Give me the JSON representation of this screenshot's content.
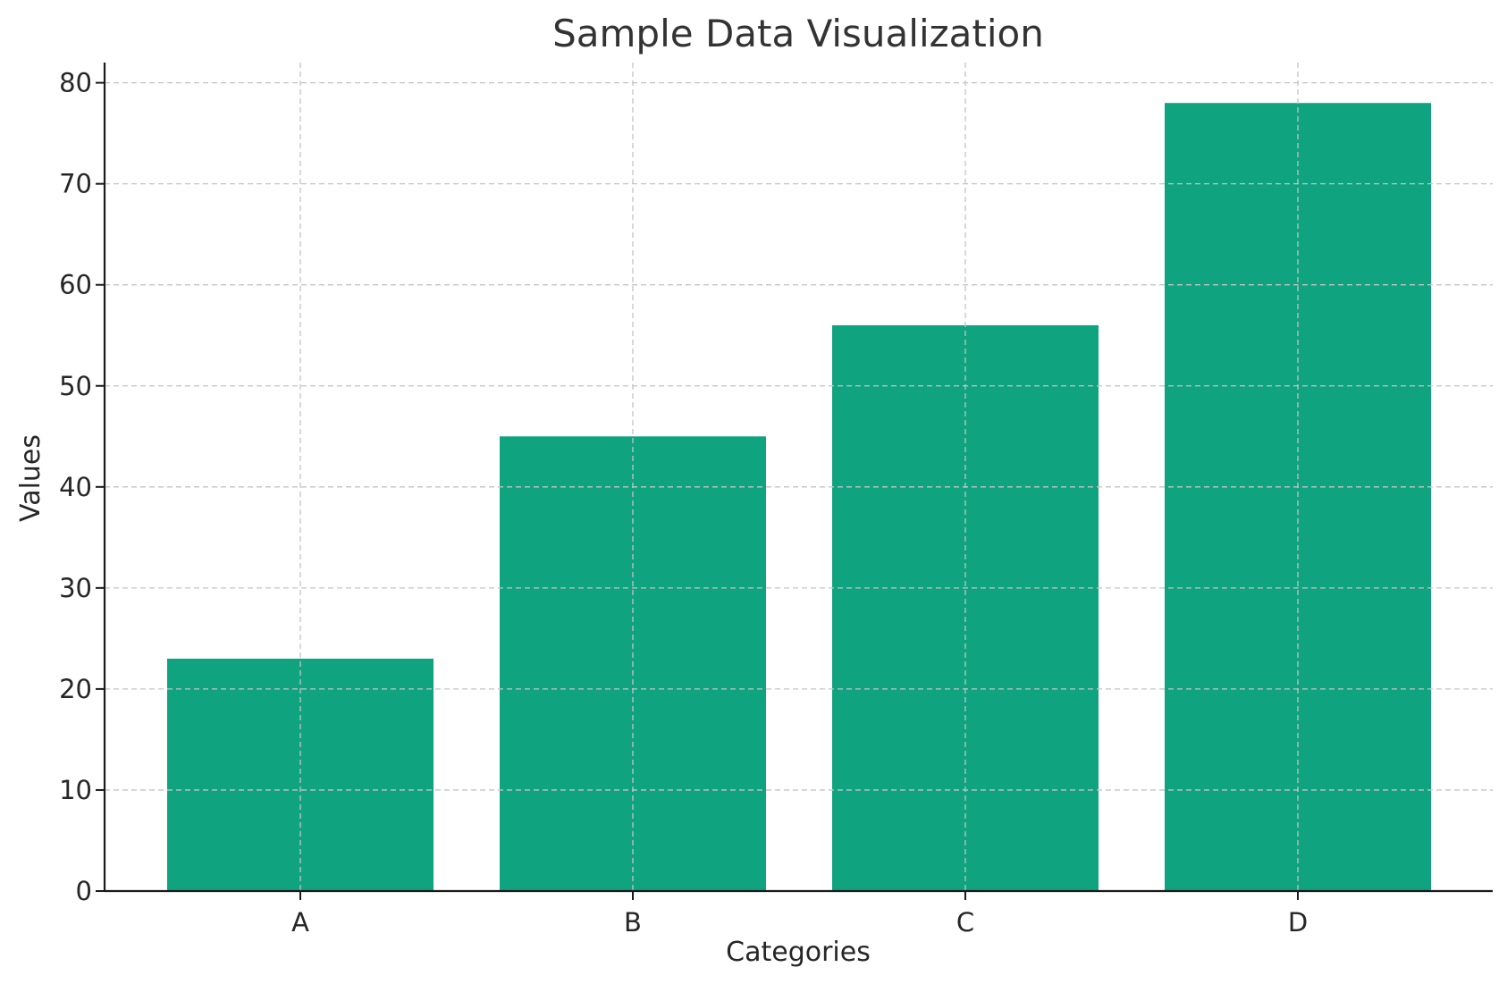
{
  "chart_data": {
    "type": "bar",
    "title": "Sample Data Visualization",
    "xlabel": "Categories",
    "ylabel": "Values",
    "categories": [
      "A",
      "B",
      "C",
      "D"
    ],
    "values": [
      23,
      45,
      56,
      78
    ],
    "ylim": [
      0,
      82
    ],
    "yticks": [
      0,
      10,
      20,
      30,
      40,
      50,
      60,
      70,
      80
    ],
    "grid": true,
    "legend": "none",
    "bar_color": "#10a37f",
    "grid_color": "#c4c4c4",
    "axis_color": "#1a1a1a"
  }
}
